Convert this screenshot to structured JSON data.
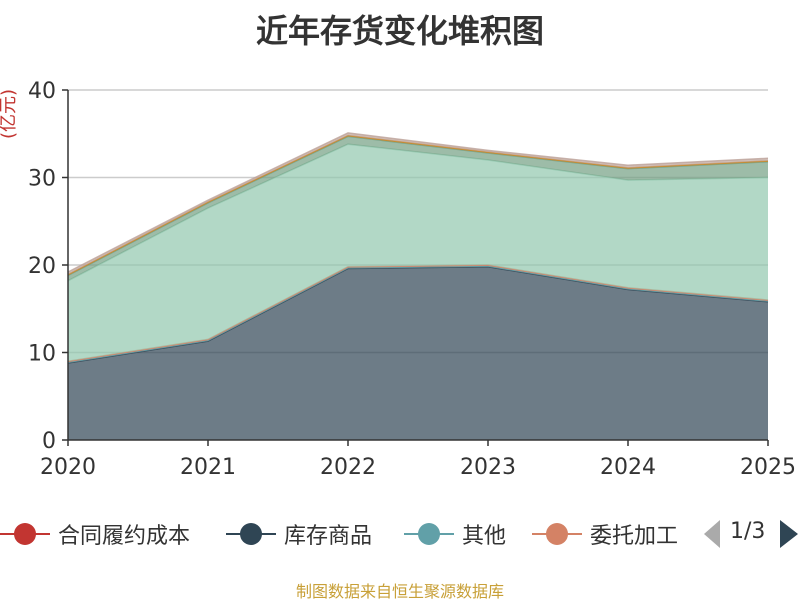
{
  "chart_data": {
    "type": "area",
    "stacked": true,
    "title": "近年存货变化堆积图",
    "ylabel": "(亿元)",
    "xlabel": "",
    "categories": [
      "2020",
      "2021",
      "2022",
      "2023",
      "2024",
      "2025"
    ],
    "ylim": [
      0,
      40
    ],
    "yticks": [
      0,
      10,
      20,
      30,
      40
    ],
    "grid": true,
    "series": [
      {
        "name": "库存商品",
        "color": "#2f4554",
        "values": [
          8.8,
          11.3,
          19.6,
          19.8,
          17.2,
          15.8
        ]
      },
      {
        "name": "其他",
        "color": "#61a0a8",
        "values": [
          0.1,
          0.1,
          0.1,
          0.1,
          0.1,
          0.1
        ]
      },
      {
        "name": "委托加工",
        "color": "#d48265",
        "values": [
          0.1,
          0.1,
          0.1,
          0.1,
          0.1,
          0.1
        ]
      },
      {
        "name": "",
        "color": "#91c7ae",
        "values": [
          9.2,
          15.0,
          14.0,
          12.0,
          12.3,
          14.0
        ]
      },
      {
        "name": "",
        "color": "#749f83",
        "values": [
          0.6,
          0.6,
          0.9,
          0.8,
          1.3,
          1.8
        ]
      },
      {
        "name": "",
        "color": "#ca8622",
        "values": [
          0.1,
          0.1,
          0.1,
          0.1,
          0.1,
          0.1
        ]
      },
      {
        "name": "",
        "color": "#bda29a",
        "values": [
          0.3,
          0.2,
          0.3,
          0.2,
          0.3,
          0.3
        ]
      }
    ],
    "legend_position": "bottom"
  },
  "legend": {
    "items": [
      {
        "label": "合同履约成本",
        "color": "#c23531"
      },
      {
        "label": "库存商品",
        "color": "#2f4554"
      },
      {
        "label": "其他",
        "color": "#61a0a8"
      },
      {
        "label": "委托加工",
        "color": "#d48265"
      }
    ],
    "pager": "1/3",
    "pager_prev_color": "#aaaaaa",
    "pager_next_color": "#2f4554"
  },
  "source": "制图数据来自恒生聚源数据库"
}
